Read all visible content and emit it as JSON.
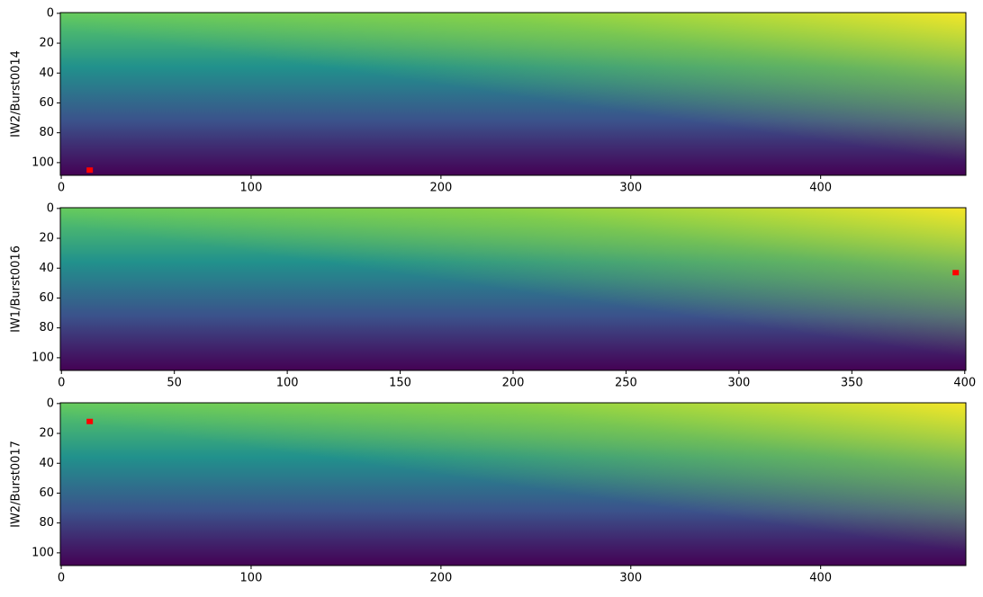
{
  "chart_data": [
    {
      "type": "image",
      "ylabel": "IW2/Burst0014",
      "colormap": "viridis",
      "xlim": [
        -0.5,
        476.5
      ],
      "ylim": [
        108.5,
        -0.5
      ],
      "xticks": [
        0,
        100,
        200,
        300,
        400
      ],
      "yticks": [
        0,
        20,
        40,
        60,
        80,
        100
      ],
      "x": [
        15
      ],
      "values": [
        105
      ],
      "color": "#ff0000"
    },
    {
      "type": "image",
      "ylabel": "IW1/Burst0016",
      "colormap": "viridis",
      "xlim": [
        -0.5,
        400.5
      ],
      "ylim": [
        108.5,
        -0.5
      ],
      "xticks": [
        0,
        50,
        100,
        150,
        200,
        250,
        300,
        350,
        400
      ],
      "yticks": [
        0,
        20,
        40,
        60,
        80,
        100
      ],
      "x": [
        396
      ],
      "values": [
        43
      ],
      "color": "#ff0000"
    },
    {
      "type": "image",
      "ylabel": "IW2/Burst0017",
      "colormap": "viridis",
      "xlim": [
        -0.5,
        476.5
      ],
      "ylim": [
        108.5,
        -0.5
      ],
      "xticks": [
        0,
        100,
        200,
        300,
        400
      ],
      "yticks": [
        0,
        20,
        40,
        60,
        80,
        100
      ],
      "x": [
        15
      ],
      "values": [
        12
      ],
      "color": "#ff0000"
    }
  ]
}
